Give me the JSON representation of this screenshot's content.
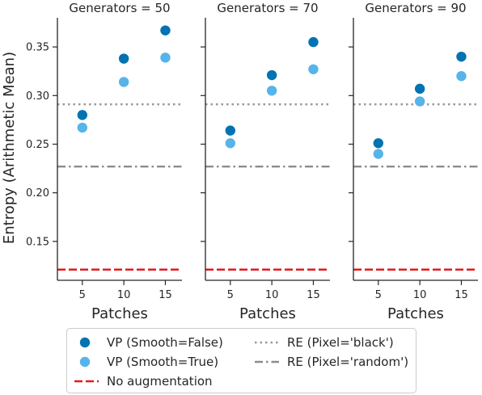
{
  "chart_data": {
    "type": "scatter",
    "ylabel": "Entropy (Arithmetic Mean)",
    "xlabel": "Patches",
    "xlim": [
      2,
      17
    ],
    "ylim": [
      0.11,
      0.38
    ],
    "xticks": [
      5,
      10,
      15
    ],
    "yticks": [
      0.15,
      0.2,
      0.25,
      0.3,
      0.35
    ],
    "ytick_labels": [
      "0.15",
      "0.20",
      "0.25",
      "0.30",
      "0.35"
    ],
    "facets": [
      {
        "title": "Generators = 50",
        "series": [
          {
            "name": "VP (Smooth=False)",
            "x": [
              5,
              10,
              15
            ],
            "y": [
              0.28,
              0.338,
              0.367
            ]
          },
          {
            "name": "VP (Smooth=True)",
            "x": [
              5,
              10,
              15
            ],
            "y": [
              0.267,
              0.314,
              0.339
            ]
          }
        ],
        "hlines": [
          {
            "name": "RE (Pixel='black')",
            "y": 0.291
          },
          {
            "name": "RE (Pixel='random')",
            "y": 0.227
          },
          {
            "name": "No augmentation",
            "y": 0.121
          }
        ]
      },
      {
        "title": "Generators = 70",
        "series": [
          {
            "name": "VP (Smooth=False)",
            "x": [
              5,
              10,
              15
            ],
            "y": [
              0.264,
              0.321,
              0.355
            ]
          },
          {
            "name": "VP (Smooth=True)",
            "x": [
              5,
              10,
              15
            ],
            "y": [
              0.251,
              0.305,
              0.327
            ]
          }
        ],
        "hlines": [
          {
            "name": "RE (Pixel='black')",
            "y": 0.291
          },
          {
            "name": "RE (Pixel='random')",
            "y": 0.227
          },
          {
            "name": "No augmentation",
            "y": 0.121
          }
        ]
      },
      {
        "title": "Generators = 90",
        "series": [
          {
            "name": "VP (Smooth=False)",
            "x": [
              5,
              10,
              15
            ],
            "y": [
              0.251,
              0.307,
              0.34
            ]
          },
          {
            "name": "VP (Smooth=True)",
            "x": [
              5,
              10,
              15
            ],
            "y": [
              0.24,
              0.294,
              0.32
            ]
          }
        ],
        "hlines": [
          {
            "name": "RE (Pixel='black')",
            "y": 0.291
          },
          {
            "name": "RE (Pixel='random')",
            "y": 0.227
          },
          {
            "name": "No augmentation",
            "y": 0.121
          }
        ]
      }
    ],
    "styles": {
      "VP (Smooth=False)": {
        "color": "#0173b2",
        "marker": "circle"
      },
      "VP (Smooth=True)": {
        "color": "#56b4e9",
        "marker": "circle"
      },
      "No augmentation": {
        "color": "#e31a1c",
        "dash": "dashed"
      },
      "RE (Pixel='black')": {
        "color": "#999999",
        "dash": "dotted"
      },
      "RE (Pixel='random')": {
        "color": "#8c8c8c",
        "dash": "dashdot"
      }
    },
    "legend": {
      "placement": "bottom-center",
      "entries": [
        {
          "label": "VP (Smooth=False)",
          "kind": "marker"
        },
        {
          "label": "RE (Pixel='black')",
          "kind": "line"
        },
        {
          "label": "VP (Smooth=True)",
          "kind": "marker"
        },
        {
          "label": "RE (Pixel='random')",
          "kind": "line"
        },
        {
          "label": "No augmentation",
          "kind": "line"
        }
      ]
    },
    "grid": false
  }
}
